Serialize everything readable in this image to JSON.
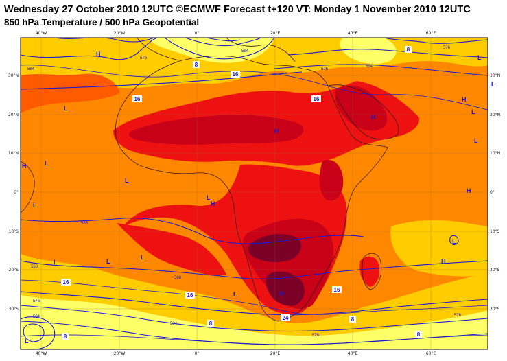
{
  "header": {
    "title": "Wednesday 27 October 2010 12UTC ©ECMWF Forecast t+120 VT: Monday 1 November 2010 12UTC",
    "subtitle": "850 hPa Temperature / 500 hPa Geopotential"
  },
  "axes": {
    "lon_ticks": [
      "40°W",
      "20°W",
      "0°",
      "20°E",
      "40°E",
      "60°E"
    ],
    "lat_ticks": [
      "30°N",
      "20°N",
      "10°N",
      "0°",
      "10°S",
      "20°S",
      "30°S"
    ]
  },
  "colors": {
    "temp_cool": "#ffff66",
    "temp_mild": "#ffcc00",
    "temp_warm": "#ff8800",
    "temp_warmer": "#ff5a00",
    "temp_hot": "#ee1111",
    "temp_very_hot": "#c80018",
    "temp_extreme": "#7a0028",
    "geopotential_line": "#1a1ad0",
    "coastline": "#3a1a1a"
  },
  "pressure_centres": [
    {
      "label": "H"
    },
    {
      "label": "L"
    },
    {
      "label": "L"
    },
    {
      "label": "H"
    },
    {
      "label": "H"
    },
    {
      "label": "L"
    },
    {
      "label": "L"
    },
    {
      "label": "H"
    },
    {
      "label": "L"
    },
    {
      "label": "L"
    },
    {
      "label": "H"
    },
    {
      "label": "L"
    },
    {
      "label": "L"
    },
    {
      "label": "H"
    },
    {
      "label": "H"
    },
    {
      "label": "L"
    },
    {
      "label": "L"
    },
    {
      "label": "L"
    },
    {
      "label": "L"
    },
    {
      "label": "L"
    },
    {
      "label": "H"
    },
    {
      "label": "L"
    },
    {
      "label": "H"
    },
    {
      "label": "L"
    }
  ],
  "temperature_labels": [
    {
      "label": "16"
    },
    {
      "label": "16"
    },
    {
      "label": "16"
    },
    {
      "label": "16"
    },
    {
      "label": "16"
    },
    {
      "label": "16"
    },
    {
      "label": "24"
    },
    {
      "label": "8"
    },
    {
      "label": "8"
    },
    {
      "label": "8"
    },
    {
      "label": "8"
    },
    {
      "label": "8"
    },
    {
      "label": "8"
    }
  ],
  "geopotential_labels": [
    {
      "label": "584"
    },
    {
      "label": "576"
    },
    {
      "label": "584"
    },
    {
      "label": "576"
    },
    {
      "label": "568"
    },
    {
      "label": "568"
    },
    {
      "label": "576"
    },
    {
      "label": "584"
    },
    {
      "label": "568"
    },
    {
      "label": "576"
    },
    {
      "label": "584"
    },
    {
      "label": "576"
    },
    {
      "label": "576"
    },
    {
      "label": "584"
    }
  ]
}
